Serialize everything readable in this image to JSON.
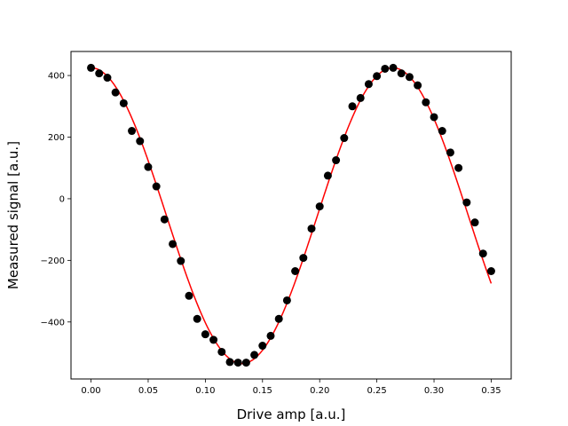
{
  "chart_data": {
    "type": "scatter",
    "xlabel": "Drive amp [a.u.]",
    "ylabel": "Measured signal [a.u.]",
    "xlim": [
      -0.0175,
      0.3675
    ],
    "ylim": [
      -585,
      478
    ],
    "xticks": [
      0.0,
      0.05,
      0.1,
      0.15,
      0.2,
      0.25,
      0.3,
      0.35
    ],
    "xtick_labels": [
      "0.00",
      "0.05",
      "0.10",
      "0.15",
      "0.20",
      "0.25",
      "0.30",
      "0.35"
    ],
    "yticks": [
      400,
      200,
      0,
      -200,
      -400
    ],
    "ytick_labels": [
      "400",
      "200",
      "0",
      "−200",
      "−400"
    ],
    "grid": false,
    "legend": "none",
    "series": [
      {
        "kind": "scatter",
        "color": "#000000",
        "x": [
          0.0,
          0.00714,
          0.01429,
          0.02143,
          0.02857,
          0.03571,
          0.04286,
          0.05,
          0.05714,
          0.06429,
          0.07143,
          0.07857,
          0.08571,
          0.09286,
          0.1,
          0.10714,
          0.11429,
          0.12143,
          0.12857,
          0.13571,
          0.14286,
          0.15,
          0.15714,
          0.16429,
          0.17143,
          0.17857,
          0.18571,
          0.19286,
          0.2,
          0.20714,
          0.21429,
          0.22143,
          0.22857,
          0.23571,
          0.24286,
          0.25,
          0.25714,
          0.26429,
          0.27143,
          0.27857,
          0.28571,
          0.29286,
          0.3,
          0.30714,
          0.31429,
          0.32143,
          0.32857,
          0.33571,
          0.34286,
          0.35
        ],
        "y": [
          425,
          407,
          393,
          345,
          310,
          220,
          187,
          103,
          40,
          -67,
          -147,
          -202,
          -315,
          -390,
          -440,
          -458,
          -497,
          -530,
          -532,
          -532,
          -507,
          -477,
          -445,
          -390,
          -330,
          -235,
          -192,
          -97,
          -25,
          75,
          125,
          197,
          300,
          327,
          372,
          398,
          422,
          425,
          407,
          395,
          368,
          313,
          265,
          220,
          150,
          100,
          -12,
          -77,
          -178,
          -235
        ]
      },
      {
        "kind": "line",
        "color": "#ff0000",
        "fit": {
          "amplitude": 480,
          "offset": -55,
          "period": 0.264,
          "phase": 0.0
        }
      }
    ]
  }
}
